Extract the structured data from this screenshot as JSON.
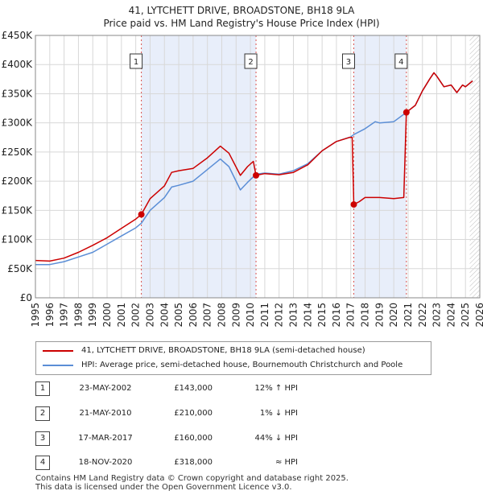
{
  "title_line1": "41, LYTCHETT DRIVE, BROADSTONE, BH18 9LA",
  "title_line2": "Price paid vs. HM Land Registry's House Price Index (HPI)",
  "colors": {
    "property": "#cc0000",
    "hpi": "#5b8ed6",
    "shade": "#e8eefa",
    "grid": "#d8d8d8",
    "marker_line": "#d9534f"
  },
  "legend": {
    "property_label": "41, LYTCHETT DRIVE, BROADSTONE, BH18 9LA (semi-detached house)",
    "hpi_label": "HPI: Average price, semi-detached house, Bournemouth Christchurch and Poole"
  },
  "sales": [
    {
      "num": "1",
      "date": "23-MAY-2002",
      "price": "£143,000",
      "hpi": "12% ↑ HPI"
    },
    {
      "num": "2",
      "date": "21-MAY-2010",
      "price": "£210,000",
      "hpi": "1% ↓ HPI"
    },
    {
      "num": "3",
      "date": "17-MAR-2017",
      "price": "£160,000",
      "hpi": "44% ↓ HPI"
    },
    {
      "num": "4",
      "date": "18-NOV-2020",
      "price": "£318,000",
      "hpi": "≈ HPI"
    }
  ],
  "footer": {
    "line1": "Contains HM Land Registry data © Crown copyright and database right 2025.",
    "line2": "This data is licensed under the Open Government Licence v3.0."
  },
  "chart_data": {
    "type": "line",
    "ylim": [
      0,
      450000
    ],
    "xlim": [
      1995,
      2026
    ],
    "y_ticks": [
      0,
      50000,
      100000,
      150000,
      200000,
      250000,
      300000,
      350000,
      400000,
      450000
    ],
    "y_tick_labels": [
      "£0",
      "£50K",
      "£100K",
      "£150K",
      "£200K",
      "£250K",
      "£300K",
      "£350K",
      "£400K",
      "£450K"
    ],
    "x_ticks": [
      1995,
      1996,
      1997,
      1998,
      1999,
      2000,
      2001,
      2002,
      2003,
      2004,
      2005,
      2006,
      2007,
      2008,
      2009,
      2010,
      2011,
      2012,
      2013,
      2014,
      2015,
      2016,
      2017,
      2018,
      2019,
      2020,
      2021,
      2022,
      2023,
      2024,
      2025,
      2026
    ],
    "shaded_periods": [
      [
        2002.39,
        2010.39
      ],
      [
        2017.21,
        2020.88
      ]
    ],
    "hatched_from": 2025.3,
    "sale_markers": [
      {
        "label": "1",
        "x": 2002.39,
        "y": 143000
      },
      {
        "label": "2",
        "x": 2010.39,
        "y": 210000
      },
      {
        "label": "3",
        "x": 2017.21,
        "y": 160000
      },
      {
        "label": "4",
        "x": 2020.88,
        "y": 318000
      }
    ],
    "series": [
      {
        "name": "41, LYTCHETT DRIVE, BROADSTONE, BH18 9LA (semi-detached house)",
        "color": "#cc0000",
        "points": [
          [
            1995,
            64000
          ],
          [
            1996,
            63000
          ],
          [
            1997,
            68000
          ],
          [
            1998,
            78000
          ],
          [
            1999,
            90000
          ],
          [
            2000,
            103000
          ],
          [
            2001,
            119000
          ],
          [
            2002,
            135000
          ],
          [
            2002.39,
            143000
          ],
          [
            2003,
            170000
          ],
          [
            2004,
            192000
          ],
          [
            2004.5,
            215000
          ],
          [
            2005,
            218000
          ],
          [
            2006,
            222000
          ],
          [
            2007,
            240000
          ],
          [
            2007.9,
            260000
          ],
          [
            2008.5,
            248000
          ],
          [
            2009.3,
            210000
          ],
          [
            2009.8,
            225000
          ],
          [
            2010.2,
            234000
          ],
          [
            2010.39,
            210000
          ],
          [
            2011,
            213000
          ],
          [
            2012,
            211000
          ],
          [
            2013,
            215000
          ],
          [
            2014,
            228000
          ],
          [
            2015,
            252000
          ],
          [
            2016,
            268000
          ],
          [
            2016.9,
            275000
          ],
          [
            2017.1,
            275000
          ],
          [
            2017.21,
            160000
          ],
          [
            2017.6,
            165000
          ],
          [
            2018,
            172000
          ],
          [
            2019,
            172000
          ],
          [
            2020,
            170000
          ],
          [
            2020.7,
            172000
          ],
          [
            2020.88,
            318000
          ],
          [
            2021.5,
            330000
          ],
          [
            2022,
            355000
          ],
          [
            2022.5,
            375000
          ],
          [
            2022.8,
            386000
          ],
          [
            2023,
            380000
          ],
          [
            2023.5,
            362000
          ],
          [
            2024,
            365000
          ],
          [
            2024.4,
            352000
          ],
          [
            2024.8,
            365000
          ],
          [
            2025,
            362000
          ],
          [
            2025.5,
            372000
          ]
        ]
      },
      {
        "name": "HPI: Average price, semi-detached house, Bournemouth Christchurch and Poole",
        "color": "#5b8ed6",
        "points": [
          [
            1995,
            57000
          ],
          [
            1996,
            57000
          ],
          [
            1997,
            62000
          ],
          [
            1998,
            70000
          ],
          [
            1999,
            78000
          ],
          [
            2000,
            92000
          ],
          [
            2001,
            106000
          ],
          [
            2002,
            120000
          ],
          [
            2002.39,
            128000
          ],
          [
            2003,
            150000
          ],
          [
            2004,
            172000
          ],
          [
            2004.5,
            190000
          ],
          [
            2005,
            193000
          ],
          [
            2006,
            200000
          ],
          [
            2007,
            220000
          ],
          [
            2007.9,
            238000
          ],
          [
            2008.5,
            225000
          ],
          [
            2009.3,
            185000
          ],
          [
            2009.8,
            198000
          ],
          [
            2010.39,
            212000
          ],
          [
            2011,
            214000
          ],
          [
            2012,
            212000
          ],
          [
            2013,
            218000
          ],
          [
            2014,
            230000
          ],
          [
            2015,
            252000
          ],
          [
            2016,
            268000
          ],
          [
            2017,
            276000
          ],
          [
            2017.21,
            280000
          ],
          [
            2018,
            290000
          ],
          [
            2018.7,
            302000
          ],
          [
            2019,
            300000
          ],
          [
            2020,
            302000
          ],
          [
            2020.88,
            318000
          ],
          [
            2021.5,
            330000
          ],
          [
            2022,
            355000
          ],
          [
            2022.5,
            375000
          ],
          [
            2022.8,
            386000
          ],
          [
            2023,
            380000
          ],
          [
            2023.5,
            362000
          ],
          [
            2024,
            365000
          ],
          [
            2024.4,
            352000
          ],
          [
            2024.8,
            365000
          ],
          [
            2025,
            362000
          ],
          [
            2025.5,
            372000
          ]
        ]
      }
    ]
  }
}
